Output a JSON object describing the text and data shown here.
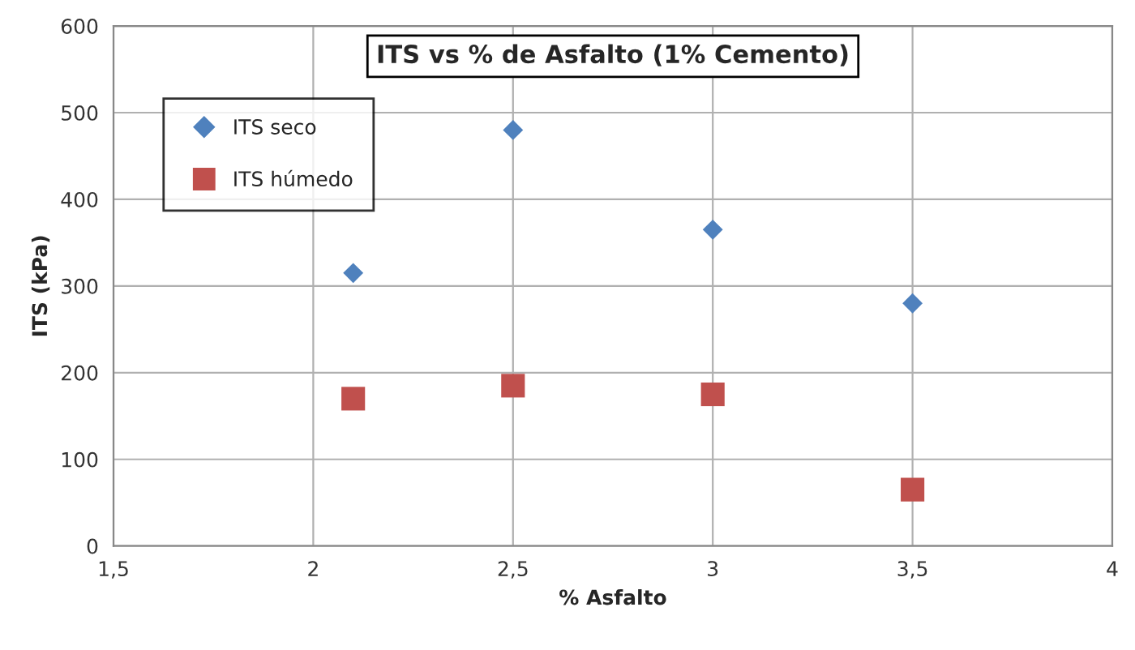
{
  "chart_data": {
    "type": "scatter",
    "title": "ITS vs % de Asfalto (1% Cemento)",
    "xlabel": "% Asfalto",
    "ylabel": "ITS (kPa)",
    "x": [
      2.1,
      2.5,
      3.0,
      3.5
    ],
    "series": [
      {
        "name": "ITS seco",
        "color": "#4f81bd",
        "marker": "diamond",
        "values": [
          315,
          480,
          365,
          280
        ]
      },
      {
        "name": "ITS húmedo",
        "color": "#c0504d",
        "marker": "square",
        "values": [
          170,
          185,
          175,
          65
        ]
      }
    ],
    "xlim": [
      1.5,
      4
    ],
    "xticks": [
      {
        "value": 1.5,
        "label": "1,5"
      },
      2,
      {
        "value": 2.5,
        "label": "2,5"
      },
      3,
      {
        "value": 3.5,
        "label": "3,5"
      },
      4
    ],
    "ylim": [
      0,
      600
    ],
    "yticks": [
      0,
      100,
      200,
      300,
      400,
      500,
      600
    ],
    "grid": true,
    "legend": "top left"
  }
}
